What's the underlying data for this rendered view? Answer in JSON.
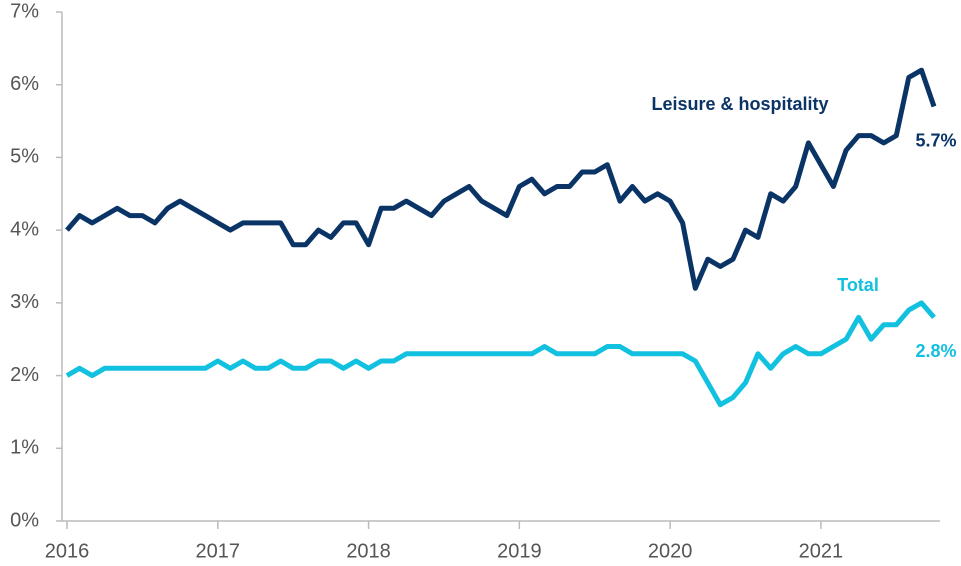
{
  "chart_data": {
    "type": "line",
    "x": [
      2016,
      2016.083,
      2016.167,
      2016.25,
      2016.333,
      2016.417,
      2016.5,
      2016.583,
      2016.667,
      2016.75,
      2016.833,
      2016.917,
      2017,
      2017.083,
      2017.167,
      2017.25,
      2017.333,
      2017.417,
      2017.5,
      2017.583,
      2017.667,
      2017.75,
      2017.833,
      2017.917,
      2018,
      2018.083,
      2018.167,
      2018.25,
      2018.333,
      2018.417,
      2018.5,
      2018.583,
      2018.667,
      2018.75,
      2018.833,
      2018.917,
      2019,
      2019.083,
      2019.167,
      2019.25,
      2019.333,
      2019.417,
      2019.5,
      2019.583,
      2019.667,
      2019.75,
      2019.833,
      2019.917,
      2020,
      2020.083,
      2020.167,
      2020.25,
      2020.333,
      2020.417,
      2020.5,
      2020.583,
      2020.667,
      2020.75,
      2020.833,
      2020.917,
      2021,
      2021.083,
      2021.167,
      2021.25,
      2021.333,
      2021.417,
      2021.5,
      2021.583,
      2021.667,
      2021.75
    ],
    "series": [
      {
        "name": "Leisure & hospitality",
        "color": "#0b3466",
        "values": [
          4.0,
          4.2,
          4.1,
          4.2,
          4.3,
          4.2,
          4.2,
          4.1,
          4.3,
          4.4,
          4.3,
          4.2,
          4.1,
          4.0,
          4.1,
          4.1,
          4.1,
          4.1,
          3.8,
          3.8,
          4.0,
          3.9,
          4.1,
          4.1,
          3.8,
          4.3,
          4.3,
          4.4,
          4.3,
          4.2,
          4.4,
          4.5,
          4.6,
          4.4,
          4.3,
          4.2,
          4.6,
          4.7,
          4.5,
          4.6,
          4.6,
          4.8,
          4.8,
          4.9,
          4.4,
          4.6,
          4.4,
          4.5,
          4.4,
          4.1,
          3.2,
          3.6,
          3.5,
          3.6,
          4.0,
          3.9,
          4.5,
          4.4,
          4.6,
          5.2,
          4.9,
          4.6,
          5.1,
          5.3,
          5.3,
          5.2,
          5.3,
          6.1,
          6.2,
          5.7
        ],
        "value_labels": {
          "69": "5.7%"
        }
      },
      {
        "name": "Total",
        "color": "#12c0df",
        "values": [
          2.0,
          2.1,
          2.0,
          2.1,
          2.1,
          2.1,
          2.1,
          2.1,
          2.1,
          2.1,
          2.1,
          2.1,
          2.2,
          2.1,
          2.2,
          2.1,
          2.1,
          2.2,
          2.1,
          2.1,
          2.2,
          2.2,
          2.1,
          2.2,
          2.1,
          2.2,
          2.2,
          2.3,
          2.3,
          2.3,
          2.3,
          2.3,
          2.3,
          2.3,
          2.3,
          2.3,
          2.3,
          2.3,
          2.4,
          2.3,
          2.3,
          2.3,
          2.3,
          2.4,
          2.4,
          2.3,
          2.3,
          2.3,
          2.3,
          2.3,
          2.2,
          1.9,
          1.6,
          1.7,
          1.9,
          2.3,
          2.1,
          2.3,
          2.4,
          2.3,
          2.3,
          2.4,
          2.5,
          2.8,
          2.5,
          2.7,
          2.7,
          2.9,
          3.0,
          2.8
        ],
        "value_labels": {
          "69": "2.8%"
        }
      }
    ],
    "xlim": [
      2016,
      2021.75
    ],
    "xticks": [
      2016,
      2017,
      2018,
      2019,
      2020,
      2021
    ],
    "ylim": [
      0,
      7
    ],
    "yticks": [
      {
        "value": 0,
        "label": "0%"
      },
      {
        "value": 1,
        "label": "1%"
      },
      {
        "value": 2,
        "label": "2%"
      },
      {
        "value": 3,
        "label": "3%"
      },
      {
        "value": 4,
        "label": "4%"
      },
      {
        "value": 5,
        "label": "5%"
      },
      {
        "value": 6,
        "label": "6%"
      },
      {
        "value": 7,
        "label": "7%"
      }
    ],
    "grid": false
  }
}
